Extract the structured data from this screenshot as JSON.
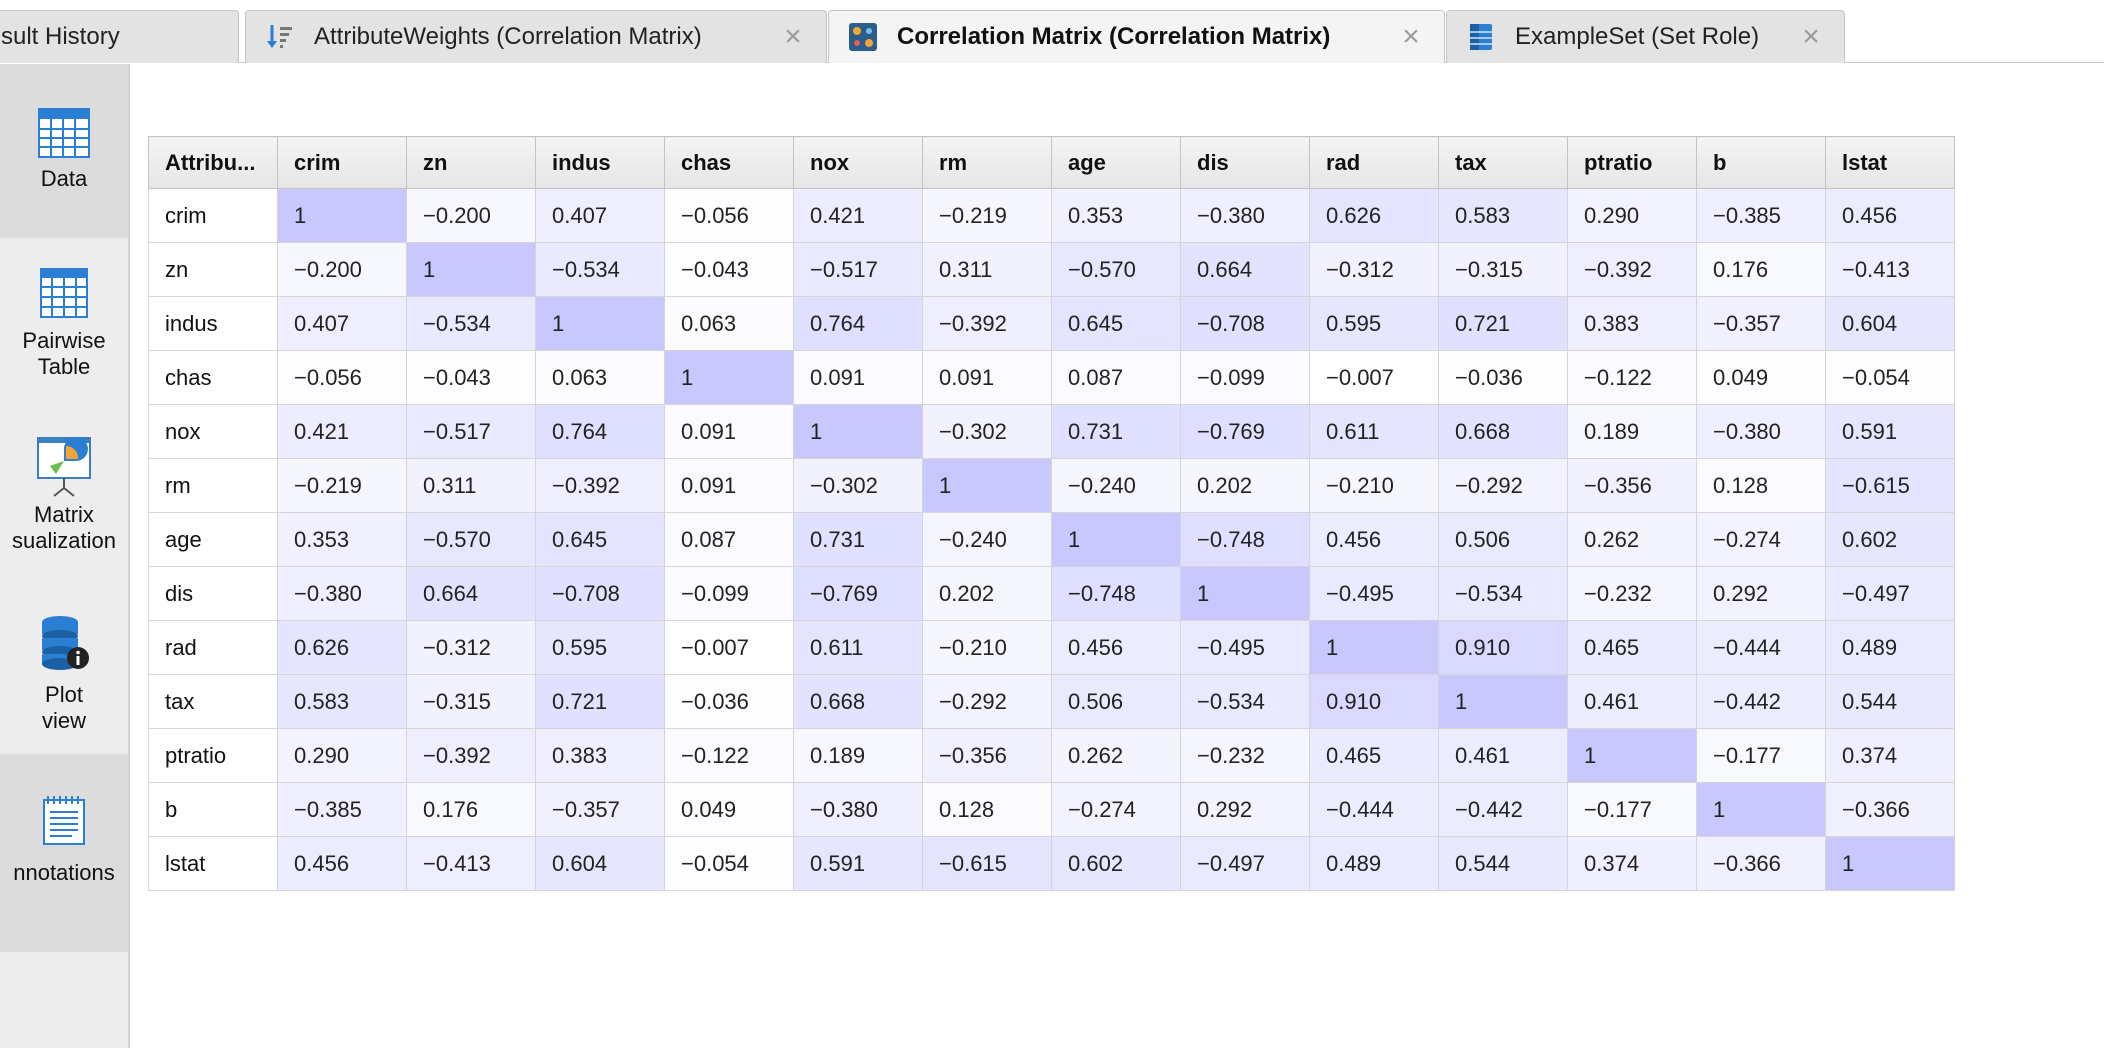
{
  "tabs": [
    {
      "label": "sult History",
      "icon": "none",
      "active": false,
      "closable": false
    },
    {
      "label": "AttributeWeights (Correlation Matrix)",
      "icon": "sort-weights-icon",
      "active": false,
      "closable": true
    },
    {
      "label": "Correlation Matrix (Correlation Matrix)",
      "icon": "correlation-matrix-icon",
      "active": true,
      "closable": true
    },
    {
      "label": "ExampleSet (Set Role)",
      "icon": "exampleset-icon",
      "active": false,
      "closable": true
    }
  ],
  "close_glyph": "×",
  "sidebar": {
    "items": [
      {
        "label": "Data",
        "icon": "table-icon",
        "selected": true
      },
      {
        "label": "Pairwise\nTable",
        "icon": "pairwise-table-icon",
        "selected": false
      },
      {
        "label": "Matrix\nsualization",
        "icon": "presentation-chart-icon",
        "selected": false
      },
      {
        "label": "Plot\nview",
        "icon": "database-info-icon",
        "selected": false
      },
      {
        "label": "nnotations",
        "icon": "notepad-icon",
        "selected": true
      }
    ]
  },
  "colors": {
    "cell_tint": "#c9c9ff",
    "diagonal": "#c8c8ff",
    "accent_blue": "#2a7fd4"
  },
  "matrix": {
    "corner_label": "Attribu...",
    "attributes": [
      "crim",
      "zn",
      "indus",
      "chas",
      "nox",
      "rm",
      "age",
      "dis",
      "rad",
      "tax",
      "ptratio",
      "b",
      "lstat"
    ],
    "rows": [
      [
        "1",
        "−0.200",
        "0.407",
        "−0.056",
        "0.421",
        "−0.219",
        "0.353",
        "−0.380",
        "0.626",
        "0.583",
        "0.290",
        "−0.385",
        "0.456"
      ],
      [
        "−0.200",
        "1",
        "−0.534",
        "−0.043",
        "−0.517",
        "0.311",
        "−0.570",
        "0.664",
        "−0.312",
        "−0.315",
        "−0.392",
        "0.176",
        "−0.413"
      ],
      [
        "0.407",
        "−0.534",
        "1",
        "0.063",
        "0.764",
        "−0.392",
        "0.645",
        "−0.708",
        "0.595",
        "0.721",
        "0.383",
        "−0.357",
        "0.604"
      ],
      [
        "−0.056",
        "−0.043",
        "0.063",
        "1",
        "0.091",
        "0.091",
        "0.087",
        "−0.099",
        "−0.007",
        "−0.036",
        "−0.122",
        "0.049",
        "−0.054"
      ],
      [
        "0.421",
        "−0.517",
        "0.764",
        "0.091",
        "1",
        "−0.302",
        "0.731",
        "−0.769",
        "0.611",
        "0.668",
        "0.189",
        "−0.380",
        "0.591"
      ],
      [
        "−0.219",
        "0.311",
        "−0.392",
        "0.091",
        "−0.302",
        "1",
        "−0.240",
        "0.202",
        "−0.210",
        "−0.292",
        "−0.356",
        "0.128",
        "−0.615"
      ],
      [
        "0.353",
        "−0.570",
        "0.645",
        "0.087",
        "0.731",
        "−0.240",
        "1",
        "−0.748",
        "0.456",
        "0.506",
        "0.262",
        "−0.274",
        "0.602"
      ],
      [
        "−0.380",
        "0.664",
        "−0.708",
        "−0.099",
        "−0.769",
        "0.202",
        "−0.748",
        "1",
        "−0.495",
        "−0.534",
        "−0.232",
        "0.292",
        "−0.497"
      ],
      [
        "0.626",
        "−0.312",
        "0.595",
        "−0.007",
        "0.611",
        "−0.210",
        "0.456",
        "−0.495",
        "1",
        "0.910",
        "0.465",
        "−0.444",
        "0.489"
      ],
      [
        "0.583",
        "−0.315",
        "0.721",
        "−0.036",
        "0.668",
        "−0.292",
        "0.506",
        "−0.534",
        "0.910",
        "1",
        "0.461",
        "−0.442",
        "0.544"
      ],
      [
        "0.290",
        "−0.392",
        "0.383",
        "−0.122",
        "0.189",
        "−0.356",
        "0.262",
        "−0.232",
        "0.465",
        "0.461",
        "1",
        "−0.177",
        "0.374"
      ],
      [
        "−0.385",
        "0.176",
        "−0.357",
        "0.049",
        "−0.380",
        "0.128",
        "−0.274",
        "0.292",
        "−0.444",
        "−0.442",
        "−0.177",
        "1",
        "−0.366"
      ],
      [
        "0.456",
        "−0.413",
        "0.604",
        "−0.054",
        "0.591",
        "−0.615",
        "0.602",
        "−0.497",
        "0.489",
        "0.544",
        "0.374",
        "−0.366",
        "1"
      ]
    ]
  }
}
